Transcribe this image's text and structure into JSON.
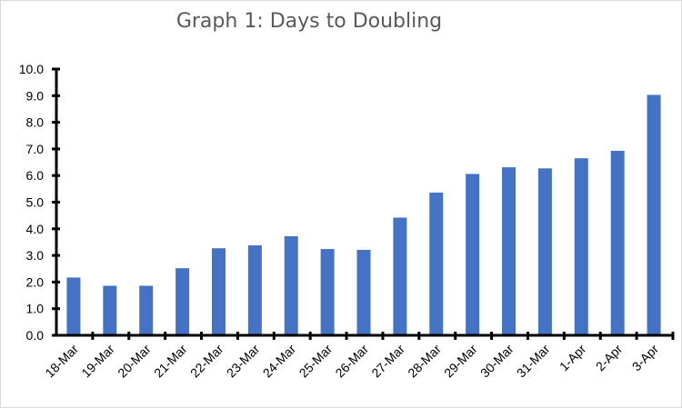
{
  "chart_data": {
    "type": "bar",
    "title": "Graph 1:  Days to Doubling",
    "xlabel": "",
    "ylabel": "",
    "categories": [
      "18-Mar",
      "19-Mar",
      "20-Mar",
      "21-Mar",
      "22-Mar",
      "23-Mar",
      "24-Mar",
      "25-Mar",
      "26-Mar",
      "27-Mar",
      "28-Mar",
      "29-Mar",
      "30-Mar",
      "31-Mar",
      "1-Apr",
      "2-Apr",
      "3-Apr"
    ],
    "values": [
      2.17,
      1.86,
      1.86,
      2.52,
      3.27,
      3.38,
      3.72,
      3.24,
      3.21,
      4.42,
      5.36,
      6.06,
      6.31,
      6.27,
      6.65,
      6.93,
      9.03
    ],
    "ylim": [
      0,
      10
    ],
    "yticks": [
      "0.0",
      "1.0",
      "2.0",
      "3.0",
      "4.0",
      "5.0",
      "6.0",
      "7.0",
      "8.0",
      "9.0",
      "10.0"
    ],
    "grid": false,
    "legend": "none",
    "bar_color": "#4472c4"
  }
}
